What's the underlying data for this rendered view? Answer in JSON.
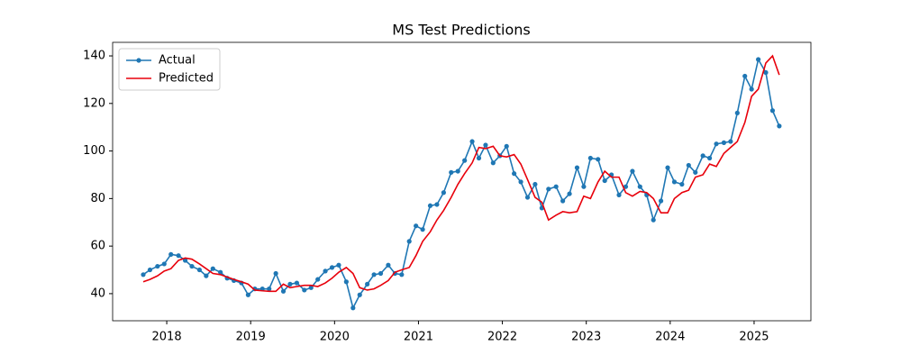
{
  "chart_data": {
    "type": "line",
    "title": "MS Test Predictions",
    "x": [
      2017.72,
      2017.8,
      2017.89,
      2017.97,
      2018.05,
      2018.14,
      2018.22,
      2018.3,
      2018.39,
      2018.47,
      2018.55,
      2018.64,
      2018.72,
      2018.8,
      2018.89,
      2018.97,
      2019.05,
      2019.14,
      2019.22,
      2019.3,
      2019.39,
      2019.47,
      2019.55,
      2019.64,
      2019.72,
      2019.8,
      2019.89,
      2019.97,
      2020.05,
      2020.14,
      2020.22,
      2020.3,
      2020.39,
      2020.47,
      2020.55,
      2020.64,
      2020.72,
      2020.8,
      2020.89,
      2020.97,
      2021.05,
      2021.14,
      2021.22,
      2021.3,
      2021.39,
      2021.47,
      2021.55,
      2021.64,
      2021.72,
      2021.8,
      2021.89,
      2021.97,
      2022.05,
      2022.14,
      2022.22,
      2022.3,
      2022.39,
      2022.47,
      2022.55,
      2022.64,
      2022.72,
      2022.8,
      2022.89,
      2022.97,
      2023.05,
      2023.14,
      2023.22,
      2023.3,
      2023.39,
      2023.47,
      2023.55,
      2023.64,
      2023.72,
      2023.8,
      2023.89,
      2023.97,
      2024.05,
      2024.14,
      2024.22,
      2024.3,
      2024.39,
      2024.47,
      2024.55,
      2024.64,
      2024.72,
      2024.8,
      2024.89,
      2024.97,
      2025.05,
      2025.14,
      2025.22,
      2025.3
    ],
    "series": [
      {
        "name": "Actual",
        "color": "#1f77b4",
        "marker": true,
        "values": [
          48,
          50,
          51.5,
          52.5,
          56.5,
          56,
          54,
          51.5,
          50,
          47.5,
          50.5,
          49,
          46.5,
          45.5,
          44.5,
          39.5,
          42,
          42,
          42,
          48.5,
          41,
          44,
          44.5,
          41.5,
          42.5,
          46,
          49.5,
          51,
          52,
          45,
          34,
          39.5,
          44,
          48,
          48.5,
          52,
          48.5,
          48,
          62,
          68.5,
          67,
          77,
          77.5,
          82.5,
          91,
          91.5,
          96,
          104,
          97,
          102.5,
          95,
          98,
          102,
          90.5,
          87,
          80.5,
          86,
          76,
          84,
          85,
          79,
          82,
          93,
          85,
          97,
          96.5,
          87.5,
          90,
          81.5,
          85,
          91.5,
          85,
          81.5,
          71,
          79,
          93,
          87,
          86,
          94,
          91,
          98,
          97,
          103,
          103.5,
          104,
          116,
          131.5,
          126,
          138.5,
          133,
          117,
          110.5
        ]
      },
      {
        "name": "Predicted",
        "color": "#e8000b",
        "marker": false,
        "values": [
          45,
          46,
          47.5,
          49.5,
          50.5,
          54,
          55,
          54.5,
          52.5,
          50.5,
          48.5,
          48,
          47,
          46,
          45,
          44,
          41.5,
          41.2,
          41,
          41,
          44,
          42.5,
          43,
          43.5,
          43.5,
          43,
          44.5,
          46.5,
          49,
          51,
          48.5,
          42.5,
          41.5,
          42,
          43.5,
          45.5,
          49,
          50,
          51,
          56,
          62,
          66,
          71,
          75,
          80.5,
          86,
          90.5,
          95,
          101.5,
          101,
          102,
          98,
          97.5,
          98.5,
          94.5,
          88,
          80.5,
          78.5,
          71,
          73,
          74.5,
          74,
          74.5,
          81,
          80,
          87,
          91.5,
          89,
          89,
          82.5,
          81,
          83,
          82.5,
          80,
          74,
          74,
          80,
          82.5,
          83.5,
          89,
          90,
          94.5,
          93.5,
          99,
          101.5,
          104,
          112,
          123,
          126,
          137,
          140,
          132
        ]
      }
    ],
    "xlim": [
      2017.355,
      2025.677
    ],
    "xticks": [
      2018,
      2019,
      2020,
      2021,
      2022,
      2023,
      2024,
      2025
    ],
    "ylim": [
      28.6,
      145.7
    ],
    "yticks": [
      40,
      60,
      80,
      100,
      120,
      140
    ],
    "legend": "upper-left"
  }
}
